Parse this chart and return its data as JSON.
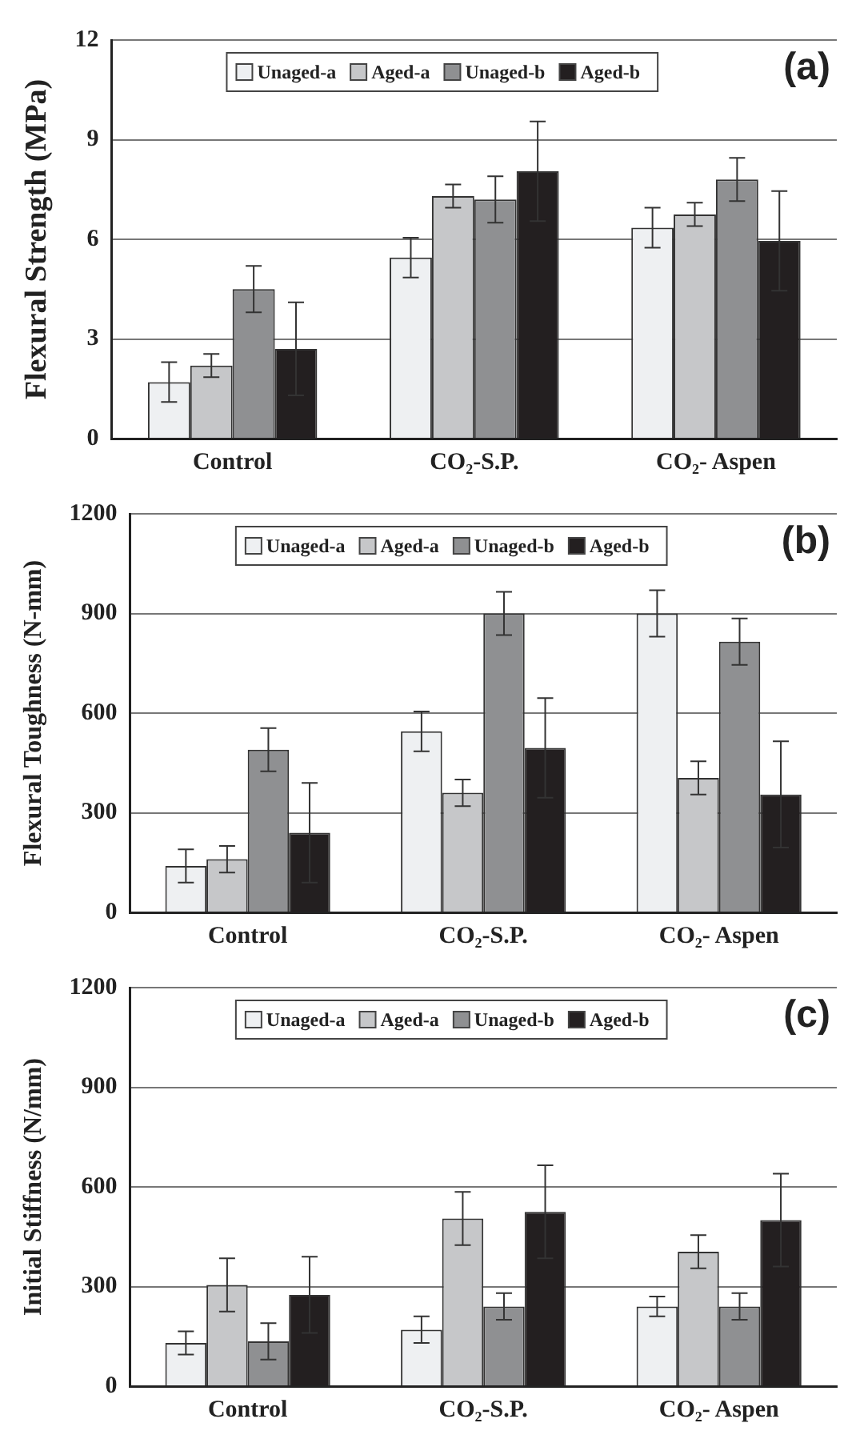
{
  "chart_data": [
    {
      "type": "bar",
      "ylabel": "Flexural Strength (MPa)",
      "categories": [
        "Control",
        "CO₂-S.P.",
        "CO₂- Aspen"
      ],
      "ylim": [
        0,
        12
      ],
      "yticks": [
        0,
        3,
        6,
        9,
        12
      ],
      "grid": "y",
      "legend": "top",
      "annotations": [
        "(a)"
      ],
      "series": [
        {
          "name": "Unaged-a",
          "color": "#eef0f2",
          "values": [
            1.7,
            5.45,
            6.35
          ],
          "errors": [
            0.6,
            0.6,
            0.6
          ]
        },
        {
          "name": "Aged-a",
          "color": "#c6c7c9",
          "values": [
            2.2,
            7.3,
            6.75
          ],
          "errors": [
            0.35,
            0.35,
            0.35
          ]
        },
        {
          "name": "Unaged-b",
          "color": "#8f9092",
          "values": [
            4.5,
            7.2,
            7.8
          ],
          "errors": [
            0.7,
            0.7,
            0.65
          ]
        },
        {
          "name": "Aged-b",
          "color": "#231f20",
          "values": [
            2.7,
            8.05,
            5.95
          ],
          "errors": [
            1.4,
            1.5,
            1.5
          ]
        }
      ]
    },
    {
      "type": "bar",
      "ylabel": "Flexural Toughness (N-mm)",
      "categories": [
        "Control",
        "CO₂-S.P.",
        "CO₂- Aspen"
      ],
      "ylim": [
        0,
        1200
      ],
      "yticks": [
        0,
        300,
        600,
        900,
        1200
      ],
      "grid": "y",
      "legend": "top",
      "annotations": [
        "(b)"
      ],
      "series": [
        {
          "name": "Unaged-a",
          "color": "#eef0f2",
          "values": [
            140,
            545,
            900
          ],
          "errors": [
            50,
            60,
            70
          ]
        },
        {
          "name": "Aged-a",
          "color": "#c6c7c9",
          "values": [
            160,
            360,
            405
          ],
          "errors": [
            40,
            40,
            50
          ]
        },
        {
          "name": "Unaged-b",
          "color": "#8f9092",
          "values": [
            490,
            900,
            815
          ],
          "errors": [
            65,
            65,
            70
          ]
        },
        {
          "name": "Aged-b",
          "color": "#231f20",
          "values": [
            240,
            495,
            355
          ],
          "errors": [
            150,
            150,
            160
          ]
        }
      ]
    },
    {
      "type": "bar",
      "ylabel": "Initial Stiffness (N/mm)",
      "categories": [
        "Control",
        "CO₂-S.P.",
        "CO₂- Aspen"
      ],
      "ylim": [
        0,
        1200
      ],
      "yticks": [
        0,
        300,
        600,
        900,
        1200
      ],
      "grid": "y",
      "legend": "top",
      "annotations": [
        "(c)"
      ],
      "series": [
        {
          "name": "Unaged-a",
          "color": "#eef0f2",
          "values": [
            130,
            170,
            240
          ],
          "errors": [
            35,
            40,
            30
          ]
        },
        {
          "name": "Aged-a",
          "color": "#c6c7c9",
          "values": [
            305,
            505,
            405
          ],
          "errors": [
            80,
            80,
            50
          ]
        },
        {
          "name": "Unaged-b",
          "color": "#8f9092",
          "values": [
            135,
            240,
            240
          ],
          "errors": [
            55,
            40,
            40
          ]
        },
        {
          "name": "Aged-b",
          "color": "#231f20",
          "values": [
            275,
            525,
            500
          ],
          "errors": [
            115,
            140,
            140
          ]
        }
      ]
    }
  ]
}
